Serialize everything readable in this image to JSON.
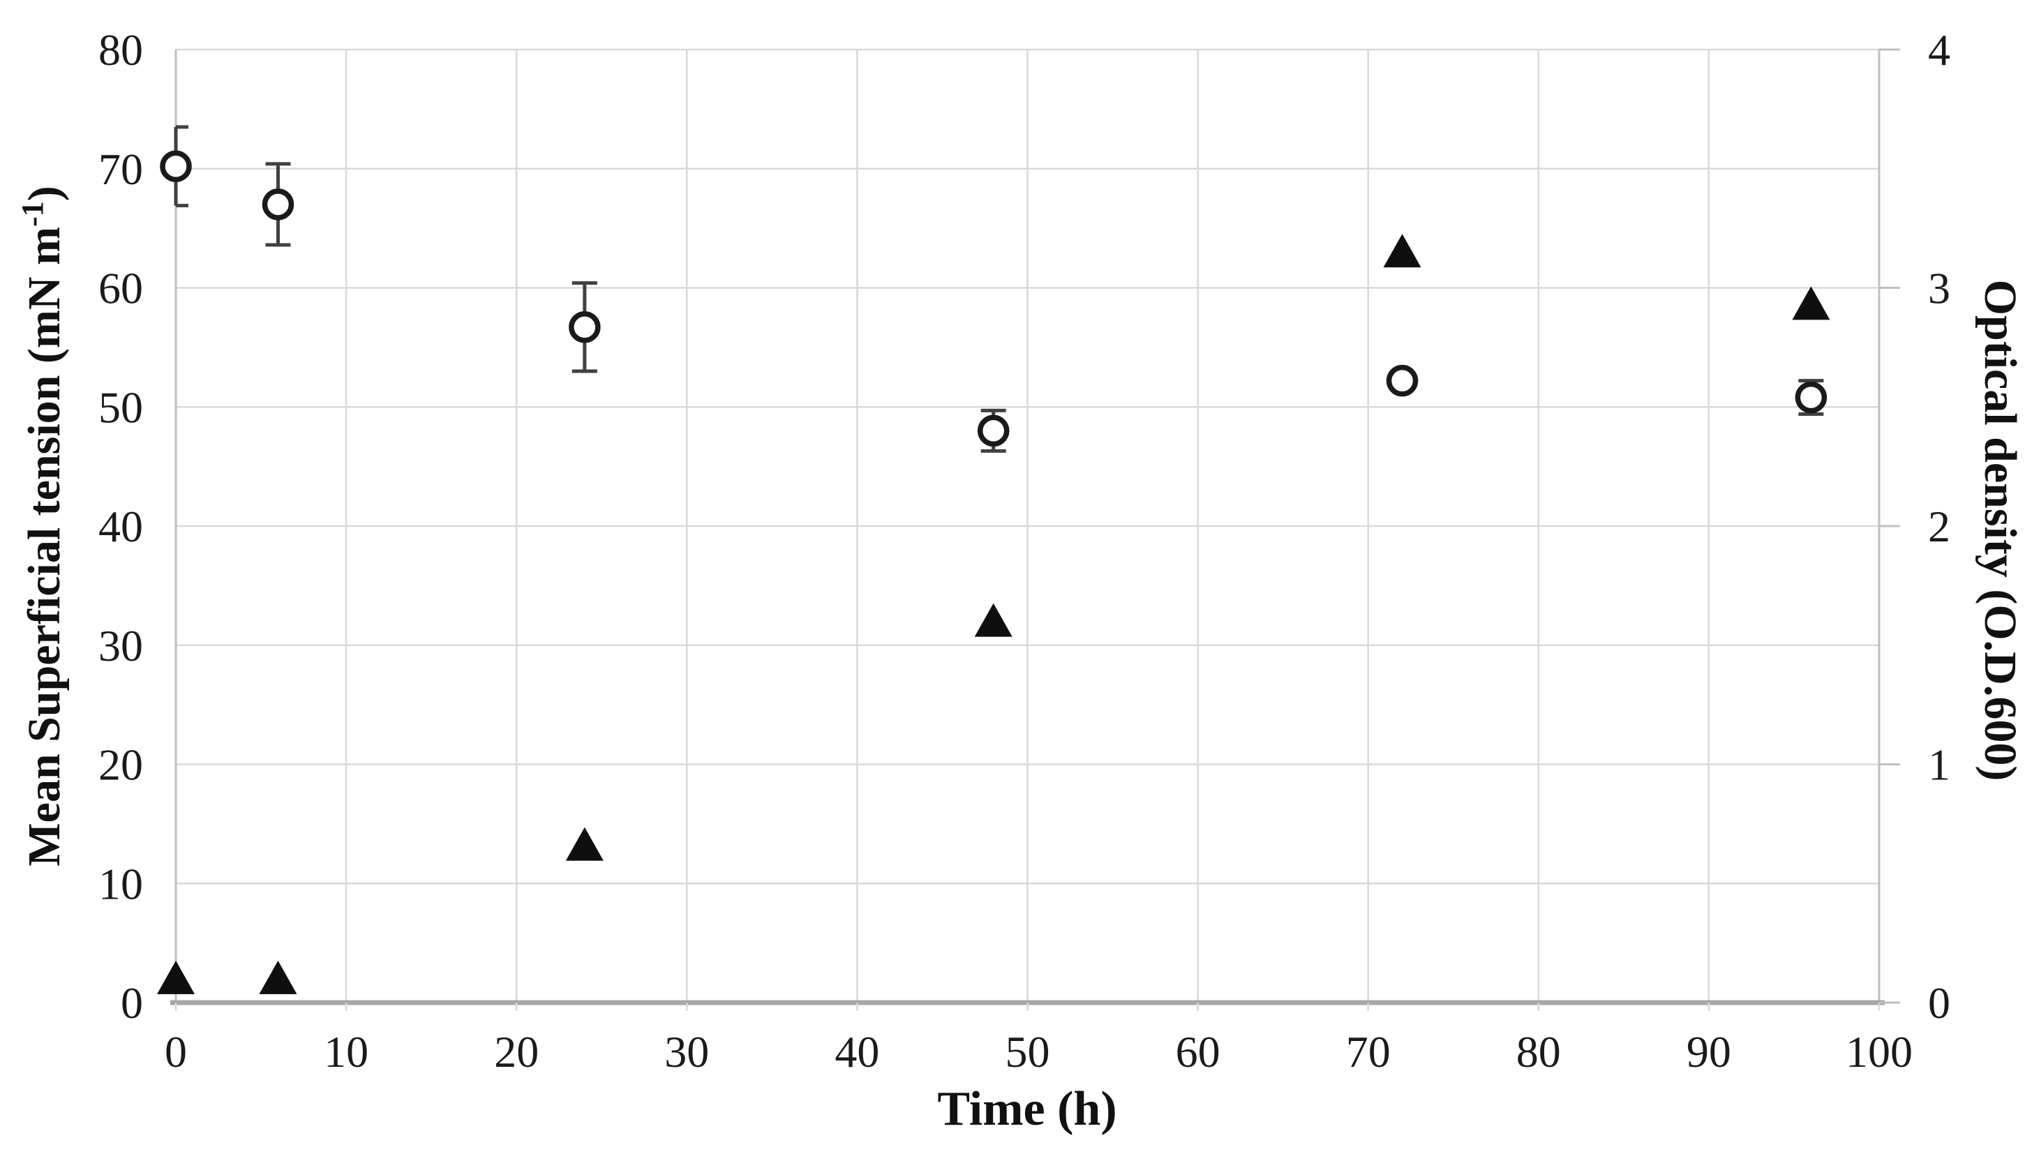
{
  "chart_data": {
    "type": "scatter",
    "title": "",
    "xlabel": "Time (h)",
    "xlim": [
      0,
      100
    ],
    "x_ticks": [
      0,
      10,
      20,
      30,
      40,
      50,
      60,
      70,
      80,
      90,
      100
    ],
    "left_axis": {
      "label_prefix": "Mean Superficial tension (mN m",
      "label_sup": "-1",
      "label_suffix": ")",
      "lim": [
        0,
        80
      ],
      "ticks": [
        0,
        10,
        20,
        30,
        40,
        50,
        60,
        70,
        80
      ]
    },
    "right_axis": {
      "label": "Optical density (O.D.600)",
      "lim": [
        0,
        4
      ],
      "ticks": [
        0,
        1,
        2,
        3,
        4
      ]
    },
    "grid": {
      "show": true,
      "color": "#d9d9d9"
    },
    "colors": {
      "marker": "#1a1a1a",
      "error_bar": "#404040",
      "axis": "#bfbfbf",
      "bottom_axis": "#a6a6a6",
      "text": "#1a1a1a",
      "background": "#ffffff"
    },
    "legend": {
      "show": false
    },
    "series": [
      {
        "name": "Mean superficial tension",
        "axis": "left",
        "marker": "open-circle",
        "x": [
          0,
          6,
          24,
          48,
          72,
          96
        ],
        "y": [
          70.2,
          67.0,
          56.7,
          48.0,
          52.2,
          50.8
        ],
        "yerr": [
          3.3,
          3.4,
          3.7,
          1.7,
          0,
          1.4
        ]
      },
      {
        "name": "Optical density",
        "axis": "right",
        "marker": "filled-triangle",
        "x": [
          0,
          6,
          24,
          48,
          72,
          96
        ],
        "y": [
          0.1,
          0.1,
          0.66,
          1.6,
          3.15,
          2.93
        ],
        "yerr": [
          0,
          0,
          0,
          0,
          0,
          0
        ]
      }
    ]
  }
}
